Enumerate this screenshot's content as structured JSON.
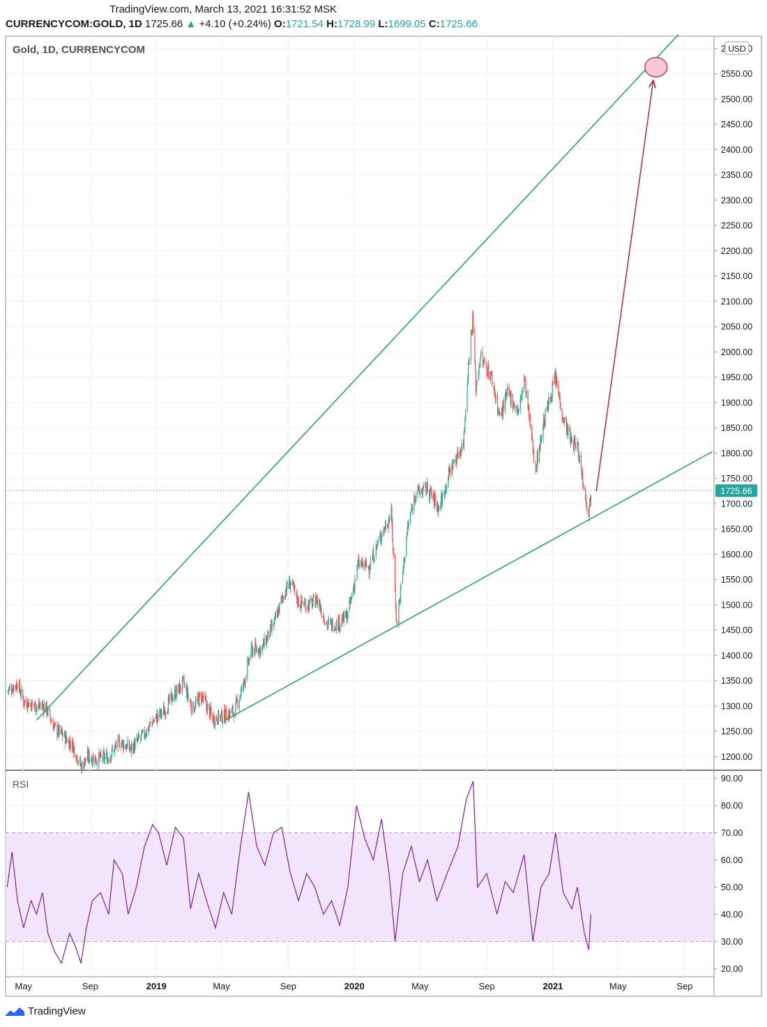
{
  "header": {
    "line1": "TradingView.com, March 13, 2021 16:31:52 MSK",
    "symbol": "CURRENCYCOM:GOLD, 1D",
    "last": "1725.66",
    "change": "+4.10 (+0.24%)",
    "open_label": "O:",
    "open": "1721.54",
    "high_label": "H:",
    "high": "1728.99",
    "low_label": "L:",
    "low": "1699.05",
    "close_label": "C:",
    "close": "1725.66"
  },
  "pane_title": "Gold, 1D, CURRENCYCOM",
  "currency_badge": "USD",
  "last_price_label": "1725.66",
  "rsi_label": "RSI",
  "footer": {
    "brand": "TradingView"
  },
  "colors": {
    "up": "#26a69a",
    "down": "#ef5350",
    "trendline": "#1b9e6a",
    "arrow": "#b2283a",
    "target": "#f8c6d8",
    "rsi_line": "#7b1fa2",
    "rsi_band": "#f3e5fb",
    "grid": "#eef0f3"
  },
  "chart_data": [
    {
      "type": "candlestick",
      "title": "Gold, 1D, CURRENCYCOM",
      "unit": "USD",
      "x_ticks": [
        "May",
        "Sep",
        "2019",
        "May",
        "Sep",
        "2020",
        "May",
        "Sep",
        "2021",
        "May",
        "Sep"
      ],
      "x_range": [
        "2018-03-29",
        "2021-10-25"
      ],
      "y_ticks": [
        1200,
        1250,
        1300,
        1350,
        1400,
        1450,
        1500,
        1550,
        1600,
        1650,
        1700,
        1750,
        1800,
        1850,
        1900,
        1950,
        2000,
        2050,
        2100,
        2150,
        2200,
        2250,
        2300,
        2350,
        2400,
        2450,
        2500,
        2550,
        2600
      ],
      "ylim": [
        1173,
        2624
      ],
      "last_price": 1725.66,
      "close_path": [
        [
          "2018-04-01",
          1330
        ],
        [
          "2018-04-20",
          1345
        ],
        [
          "2018-05-01",
          1310
        ],
        [
          "2018-05-25",
          1300
        ],
        [
          "2018-06-10",
          1300
        ],
        [
          "2018-06-28",
          1255
        ],
        [
          "2018-07-15",
          1240
        ],
        [
          "2018-08-01",
          1220
        ],
        [
          "2018-08-15",
          1180
        ],
        [
          "2018-08-28",
          1200
        ],
        [
          "2018-09-15",
          1195
        ],
        [
          "2018-10-05",
          1200
        ],
        [
          "2018-10-25",
          1230
        ],
        [
          "2018-11-15",
          1215
        ],
        [
          "2018-12-10",
          1245
        ],
        [
          "2018-12-25",
          1270
        ],
        [
          "2019-01-15",
          1290
        ],
        [
          "2019-02-01",
          1320
        ],
        [
          "2019-02-20",
          1345
        ],
        [
          "2019-03-08",
          1295
        ],
        [
          "2019-03-25",
          1320
        ],
        [
          "2019-04-15",
          1275
        ],
        [
          "2019-05-05",
          1280
        ],
        [
          "2019-05-25",
          1290
        ],
        [
          "2019-06-10",
          1340
        ],
        [
          "2019-06-25",
          1410
        ],
        [
          "2019-07-15",
          1415
        ],
        [
          "2019-08-05",
          1460
        ],
        [
          "2019-08-25",
          1525
        ],
        [
          "2019-09-05",
          1545
        ],
        [
          "2019-09-20",
          1505
        ],
        [
          "2019-10-10",
          1500
        ],
        [
          "2019-10-25",
          1510
        ],
        [
          "2019-11-12",
          1460
        ],
        [
          "2019-12-05",
          1465
        ],
        [
          "2019-12-20",
          1480
        ],
        [
          "2020-01-08",
          1580
        ],
        [
          "2020-01-28",
          1575
        ],
        [
          "2020-02-20",
          1640
        ],
        [
          "2020-03-09",
          1680
        ],
        [
          "2020-03-19",
          1460
        ],
        [
          "2020-04-08",
          1650
        ],
        [
          "2020-04-22",
          1720
        ],
        [
          "2020-05-15",
          1730
        ],
        [
          "2020-06-05",
          1690
        ],
        [
          "2020-06-25",
          1765
        ],
        [
          "2020-07-20",
          1820
        ],
        [
          "2020-07-28",
          1960
        ],
        [
          "2020-08-06",
          2065
        ],
        [
          "2020-08-12",
          1930
        ],
        [
          "2020-08-20",
          1990
        ],
        [
          "2020-09-10",
          1950
        ],
        [
          "2020-09-25",
          1870
        ],
        [
          "2020-10-10",
          1920
        ],
        [
          "2020-10-30",
          1880
        ],
        [
          "2020-11-09",
          1950
        ],
        [
          "2020-11-25",
          1810
        ],
        [
          "2020-11-30",
          1770
        ],
        [
          "2020-12-15",
          1860
        ],
        [
          "2021-01-05",
          1950
        ],
        [
          "2021-01-20",
          1870
        ],
        [
          "2021-02-05",
          1820
        ],
        [
          "2021-02-15",
          1815
        ],
        [
          "2021-02-28",
          1730
        ],
        [
          "2021-03-08",
          1680
        ],
        [
          "2021-03-12",
          1725.66
        ]
      ],
      "annotations": [
        {
          "kind": "trendline",
          "from": [
            "2018-05-25",
            1272
          ],
          "to": [
            "2021-08-20",
            2627
          ]
        },
        {
          "kind": "trendline",
          "from": [
            "2019-05-08",
            1272
          ],
          "to": [
            "2021-10-22",
            1803
          ]
        },
        {
          "kind": "arrow",
          "from": [
            "2021-03-22",
            1725
          ],
          "to": [
            "2021-07-05",
            2537
          ]
        },
        {
          "kind": "ellipse",
          "center": [
            "2021-07-10",
            2563
          ]
        }
      ]
    },
    {
      "type": "line",
      "title": "RSI",
      "y_ticks": [
        20,
        30,
        40,
        50,
        60,
        70,
        80,
        90
      ],
      "ylim": [
        17,
        93
      ],
      "band": [
        30,
        70
      ],
      "series": [
        {
          "values": [
            [
              "2018-04-01",
              50
            ],
            [
              "2018-04-10",
              63
            ],
            [
              "2018-04-20",
              45
            ],
            [
              "2018-05-01",
              35
            ],
            [
              "2018-05-15",
              45
            ],
            [
              "2018-05-25",
              40
            ],
            [
              "2018-06-05",
              48
            ],
            [
              "2018-06-15",
              33
            ],
            [
              "2018-06-28",
              26
            ],
            [
              "2018-07-10",
              22
            ],
            [
              "2018-07-25",
              33
            ],
            [
              "2018-08-05",
              28
            ],
            [
              "2018-08-15",
              22
            ],
            [
              "2018-08-25",
              35
            ],
            [
              "2018-09-05",
              45
            ],
            [
              "2018-09-20",
              48
            ],
            [
              "2018-10-05",
              40
            ],
            [
              "2018-10-15",
              60
            ],
            [
              "2018-10-30",
              55
            ],
            [
              "2018-11-10",
              40
            ],
            [
              "2018-11-25",
              50
            ],
            [
              "2018-12-10",
              65
            ],
            [
              "2018-12-25",
              73
            ],
            [
              "2019-01-05",
              70
            ],
            [
              "2019-01-20",
              58
            ],
            [
              "2019-02-05",
              72
            ],
            [
              "2019-02-20",
              68
            ],
            [
              "2019-03-05",
              42
            ],
            [
              "2019-03-20",
              55
            ],
            [
              "2019-04-05",
              44
            ],
            [
              "2019-04-20",
              35
            ],
            [
              "2019-05-05",
              48
            ],
            [
              "2019-05-20",
              40
            ],
            [
              "2019-06-05",
              65
            ],
            [
              "2019-06-20",
              85
            ],
            [
              "2019-07-05",
              65
            ],
            [
              "2019-07-20",
              58
            ],
            [
              "2019-08-05",
              70
            ],
            [
              "2019-08-20",
              72
            ],
            [
              "2019-09-05",
              55
            ],
            [
              "2019-09-20",
              45
            ],
            [
              "2019-10-05",
              55
            ],
            [
              "2019-10-20",
              50
            ],
            [
              "2019-11-05",
              40
            ],
            [
              "2019-11-20",
              45
            ],
            [
              "2019-12-05",
              36
            ],
            [
              "2019-12-20",
              50
            ],
            [
              "2020-01-05",
              80
            ],
            [
              "2020-01-20",
              68
            ],
            [
              "2020-02-05",
              60
            ],
            [
              "2020-02-20",
              75
            ],
            [
              "2020-03-05",
              55
            ],
            [
              "2020-03-16",
              30
            ],
            [
              "2020-03-30",
              55
            ],
            [
              "2020-04-15",
              65
            ],
            [
              "2020-04-30",
              52
            ],
            [
              "2020-05-15",
              60
            ],
            [
              "2020-06-01",
              45
            ],
            [
              "2020-06-20",
              55
            ],
            [
              "2020-07-10",
              65
            ],
            [
              "2020-07-25",
              82
            ],
            [
              "2020-08-07",
              89
            ],
            [
              "2020-08-15",
              50
            ],
            [
              "2020-09-01",
              55
            ],
            [
              "2020-09-20",
              40
            ],
            [
              "2020-10-05",
              52
            ],
            [
              "2020-10-20",
              48
            ],
            [
              "2020-11-09",
              62
            ],
            [
              "2020-11-25",
              30
            ],
            [
              "2020-12-10",
              50
            ],
            [
              "2020-12-25",
              55
            ],
            [
              "2021-01-06",
              70
            ],
            [
              "2021-01-20",
              48
            ],
            [
              "2021-02-05",
              42
            ],
            [
              "2021-02-15",
              50
            ],
            [
              "2021-02-28",
              33
            ],
            [
              "2021-03-08",
              27
            ],
            [
              "2021-03-12",
              40
            ]
          ]
        }
      ]
    }
  ]
}
